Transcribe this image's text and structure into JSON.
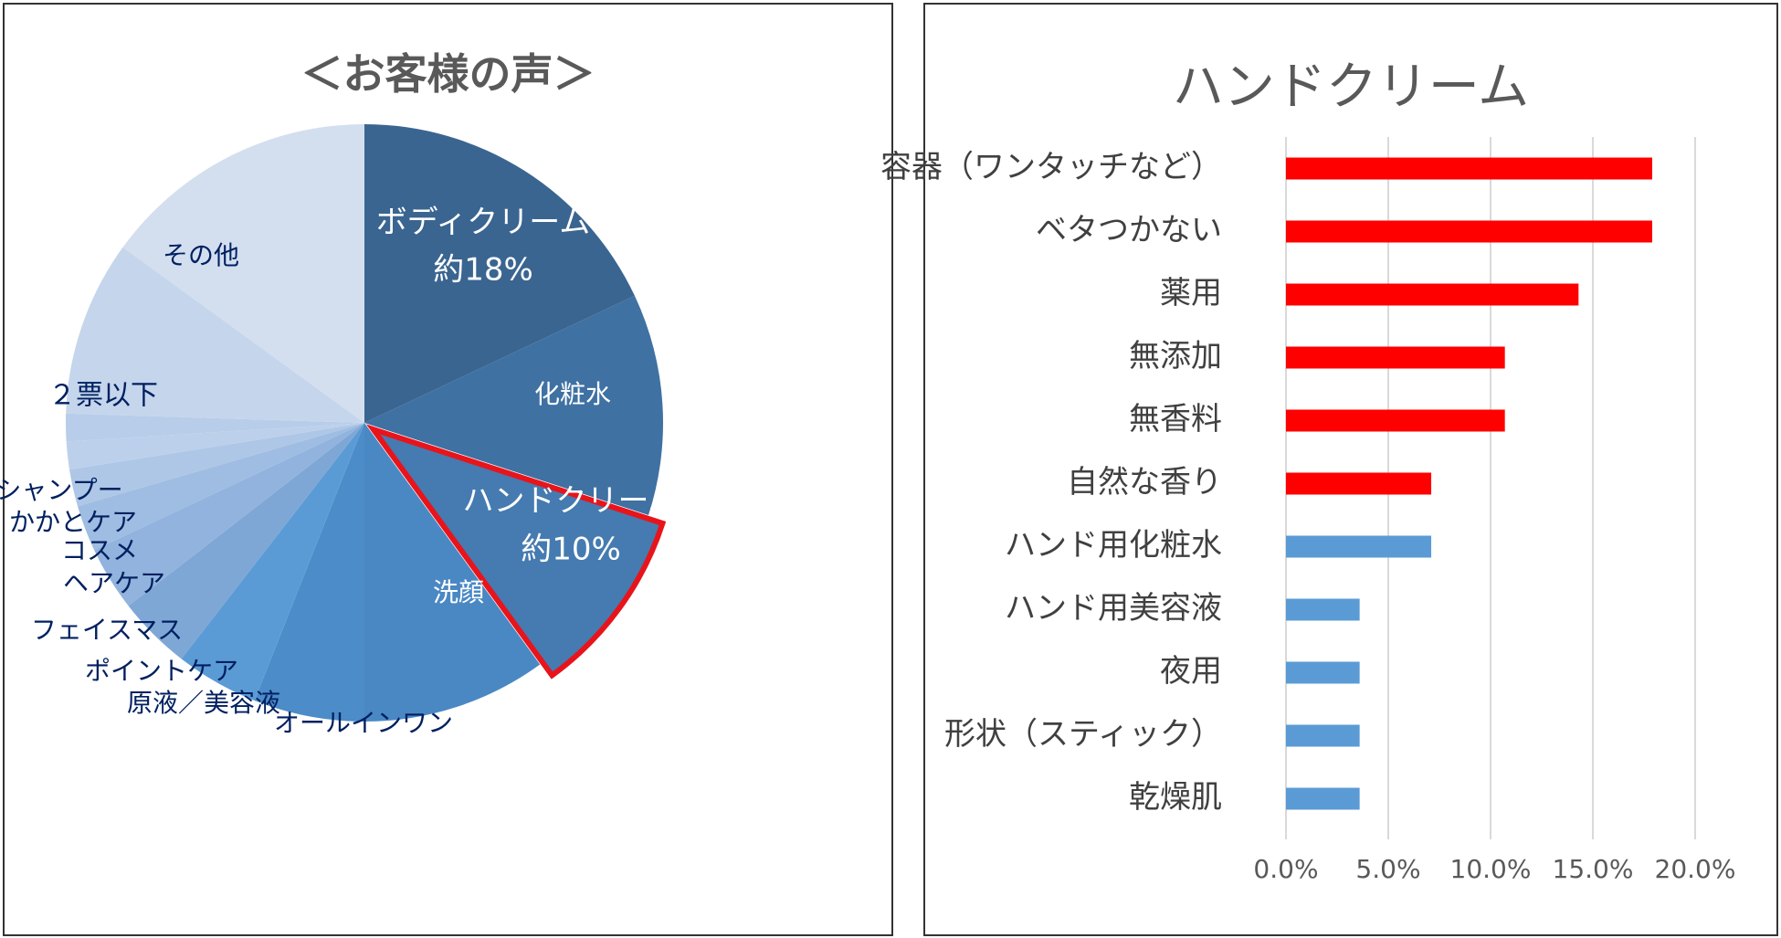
{
  "chart_data": [
    {
      "type": "pie",
      "title": "＜お客様の声＞",
      "slices": [
        {
          "label": "ボディクリーム",
          "value": 18,
          "value_label": "約18%",
          "color": "#3a6590",
          "text_color": "#ffffff"
        },
        {
          "label": "化粧水",
          "value": 12,
          "color": "#3f71a2",
          "text_color": "#ffffff"
        },
        {
          "label": "ハンドクリーム",
          "value": 10,
          "value_label": "約10%",
          "color": "#457bb0",
          "text_color": "#ffffff",
          "highlight": true
        },
        {
          "label": "洗顔",
          "value": 10,
          "color": "#4a88c4",
          "text_color": "#ffffff"
        },
        {
          "label": "オールインワン",
          "value": 6,
          "color": "#4c8cc8",
          "text_color": "#002060"
        },
        {
          "label": "原液／美容液",
          "value": 4.5,
          "color": "#5b9bd5",
          "text_color": "#002060"
        },
        {
          "label": "ポイントケア",
          "value": 4,
          "color": "#7ea7d6",
          "text_color": "#002060"
        },
        {
          "label": "フェイスマス",
          "value": 3.5,
          "color": "#91b3dd",
          "text_color": "#002060"
        },
        {
          "label": "ヘアケア",
          "value": 2.5,
          "color": "#9fbde2",
          "text_color": "#002060"
        },
        {
          "label": "コスメ",
          "value": 2,
          "color": "#aec7e6",
          "text_color": "#002060"
        },
        {
          "label": "かかとケア",
          "value": 1.5,
          "color": "#bcd0eb",
          "text_color": "#002060"
        },
        {
          "label": "シャンプー",
          "value": 1.5,
          "color": "#b7cde9",
          "text_color": "#002060"
        },
        {
          "label": "２票以下",
          "value": 9.5,
          "color": "#c5d5ec",
          "text_color": "#002060"
        },
        {
          "label": "その他",
          "value": 15,
          "color": "#d3dfef",
          "text_color": "#002060"
        }
      ],
      "highlight_color": "#e8141b"
    },
    {
      "type": "bar",
      "orientation": "horizontal",
      "title": "ハンドクリーム",
      "categories": [
        "容器（ワンタッチなど）",
        "ベタつかない",
        "薬用",
        "無添加",
        "無香料",
        "自然な香り",
        "ハンド用化粧水",
        "ハンド用美容液",
        "夜用",
        "形状（スティック）",
        "乾燥肌"
      ],
      "values": [
        17.9,
        17.9,
        14.3,
        10.7,
        10.7,
        7.1,
        7.1,
        3.6,
        3.6,
        3.6,
        3.6
      ],
      "colors": [
        "#ff0000",
        "#ff0000",
        "#ff0000",
        "#ff0000",
        "#ff0000",
        "#ff0000",
        "#5b9bd5",
        "#5b9bd5",
        "#5b9bd5",
        "#5b9bd5",
        "#5b9bd5"
      ],
      "xlim": [
        0,
        20
      ],
      "xticks": [
        "0.0%",
        "5.0%",
        "10.0%",
        "15.0%",
        "20.0%"
      ],
      "grid": true
    }
  ]
}
